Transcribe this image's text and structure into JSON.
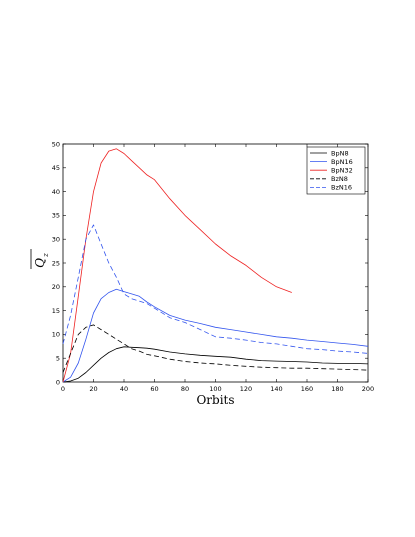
{
  "chart_data": {
    "type": "line",
    "xlabel": "Orbits",
    "ylabel": "Q",
    "ylabel_sub": "z",
    "xlim": [
      0,
      200
    ],
    "ylim": [
      0,
      50
    ],
    "xticks": [
      0,
      20,
      40,
      60,
      80,
      100,
      120,
      140,
      160,
      180,
      200
    ],
    "yticks": [
      0,
      5,
      10,
      15,
      20,
      25,
      30,
      35,
      40,
      45,
      50
    ],
    "grid": false,
    "legend_position": "top-right",
    "series": [
      {
        "name": "BpN8",
        "color": "#000000",
        "dash": "solid",
        "x": [
          0,
          5,
          10,
          15,
          20,
          25,
          30,
          35,
          40,
          45,
          50,
          55,
          60,
          70,
          80,
          90,
          100,
          110,
          120,
          130,
          140,
          150,
          160,
          170,
          180,
          190,
          200
        ],
        "y": [
          0,
          0.2,
          0.8,
          2.0,
          3.5,
          5.0,
          6.2,
          7.0,
          7.4,
          7.3,
          7.2,
          7.1,
          6.9,
          6.3,
          5.9,
          5.6,
          5.4,
          5.2,
          4.8,
          4.5,
          4.4,
          4.3,
          4.2,
          4.0,
          3.9,
          3.9,
          3.8
        ]
      },
      {
        "name": "BpN16",
        "color": "#3355ee",
        "dash": "solid",
        "x": [
          0,
          5,
          10,
          15,
          20,
          25,
          30,
          35,
          40,
          45,
          50,
          55,
          60,
          70,
          80,
          90,
          100,
          110,
          120,
          130,
          140,
          150,
          160,
          170,
          180,
          190,
          200
        ],
        "y": [
          0,
          1.0,
          4.0,
          9.0,
          14.5,
          17.5,
          18.8,
          19.5,
          19.0,
          18.5,
          18.0,
          16.8,
          15.8,
          14.0,
          13.0,
          12.3,
          11.5,
          11.0,
          10.5,
          10.0,
          9.5,
          9.2,
          8.8,
          8.5,
          8.2,
          7.9,
          7.5
        ]
      },
      {
        "name": "BpN32",
        "color": "#ee2222",
        "dash": "solid",
        "x": [
          0,
          5,
          10,
          15,
          20,
          25,
          30,
          35,
          40,
          45,
          50,
          55,
          60,
          70,
          80,
          90,
          100,
          110,
          120,
          130,
          140,
          150
        ],
        "y": [
          0,
          6.0,
          18.0,
          30.0,
          40.0,
          46.0,
          48.5,
          49.0,
          48.0,
          46.5,
          45.0,
          43.5,
          42.5,
          38.5,
          35.0,
          32.0,
          29.0,
          26.5,
          24.5,
          22.0,
          20.0,
          18.8
        ]
      },
      {
        "name": "BzN8",
        "color": "#000000",
        "dash": "dashed",
        "x": [
          0,
          5,
          10,
          15,
          20,
          25,
          30,
          35,
          40,
          45,
          50,
          55,
          60,
          70,
          80,
          90,
          100,
          110,
          120,
          130,
          140,
          150,
          160,
          170,
          180,
          190,
          200
        ],
        "y": [
          2.0,
          6.0,
          10.0,
          11.5,
          12.0,
          11.0,
          10.0,
          9.0,
          8.0,
          7.0,
          6.5,
          5.8,
          5.5,
          4.8,
          4.3,
          4.0,
          3.8,
          3.5,
          3.3,
          3.1,
          3.0,
          2.9,
          2.9,
          2.8,
          2.7,
          2.6,
          2.5
        ]
      },
      {
        "name": "BzN16",
        "color": "#3355ee",
        "dash": "dashed",
        "x": [
          0,
          5,
          10,
          15,
          20,
          25,
          30,
          35,
          40,
          45,
          50,
          55,
          60,
          70,
          80,
          90,
          100,
          110,
          120,
          130,
          140,
          150,
          160,
          170,
          180,
          190,
          200
        ],
        "y": [
          8.0,
          14.0,
          22.0,
          30.0,
          33.0,
          29.0,
          25.0,
          22.0,
          18.5,
          17.5,
          17.0,
          16.5,
          15.5,
          13.5,
          12.5,
          11.0,
          9.5,
          9.2,
          8.8,
          8.3,
          8.0,
          7.5,
          7.0,
          6.8,
          6.5,
          6.3,
          6.0
        ]
      }
    ]
  }
}
